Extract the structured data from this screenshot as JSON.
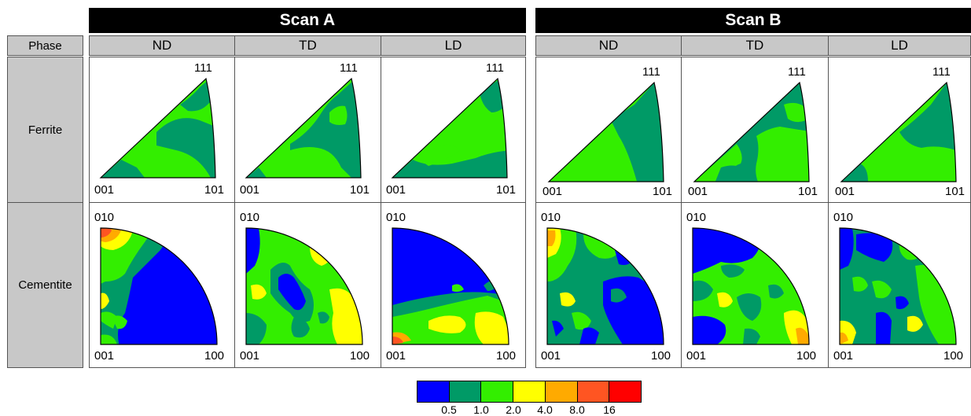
{
  "scans": [
    {
      "title": "Scan A",
      "directions": [
        "ND",
        "TD",
        "LD"
      ]
    },
    {
      "title": "Scan B",
      "directions": [
        "ND",
        "TD",
        "LD"
      ]
    }
  ],
  "phase_header": "Phase",
  "phases": [
    "Ferrite",
    "Cementite"
  ],
  "ferrite_corner_labels": {
    "top": "111",
    "bottom_left": "001",
    "bottom_right": "101"
  },
  "cementite_corner_labels": {
    "top": "010",
    "bottom_left": "001",
    "bottom_right": "100"
  },
  "legend": {
    "colors": [
      "#0000ff",
      "#009a66",
      "#33ee00",
      "#ffff00",
      "#ffaa00",
      "#ff5522",
      "#ff0000"
    ],
    "labels": [
      "0.5",
      "1.0",
      "2.0",
      "4.0",
      "8.0",
      "16"
    ]
  }
}
